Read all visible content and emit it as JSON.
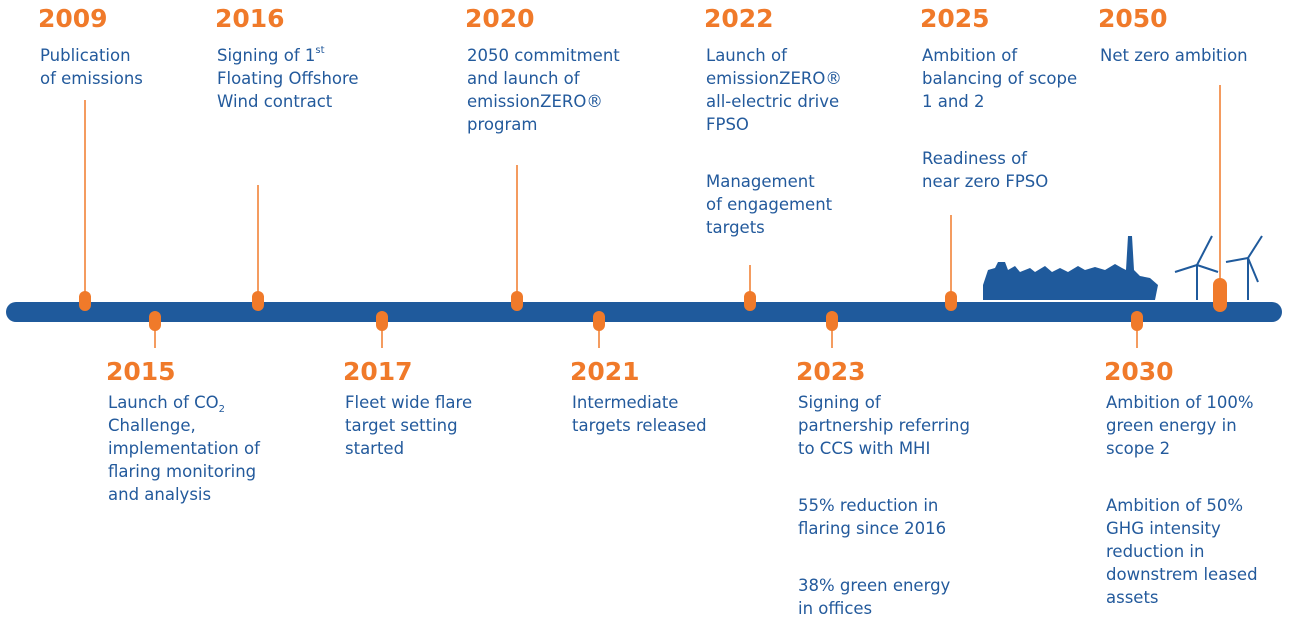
{
  "timeline": {
    "top": [
      {
        "year": "2009",
        "paragraphs": [
          [
            {
              "text": "Publication"
            },
            {
              "text": "of emissions"
            }
          ]
        ]
      },
      {
        "year": "2016",
        "paragraphs": [
          [
            {
              "text": "Signing of 1",
              "sup": "st"
            },
            {
              "text": "Floating Offshore"
            },
            {
              "text": "Wind contract"
            }
          ]
        ]
      },
      {
        "year": "2020",
        "paragraphs": [
          [
            {
              "text": "2050 commitment"
            },
            {
              "text": "and launch of"
            },
            {
              "text": "emissionZERO®"
            },
            {
              "text": "program"
            }
          ]
        ]
      },
      {
        "year": "2022",
        "paragraphs": [
          [
            {
              "text": "Launch of"
            },
            {
              "text": "emissionZERO®"
            },
            {
              "text": "all-electric drive"
            },
            {
              "text": "FPSO"
            }
          ],
          [
            {
              "text": "Management"
            },
            {
              "text": "of engagement"
            },
            {
              "text": "targets"
            }
          ]
        ]
      },
      {
        "year": "2025",
        "paragraphs": [
          [
            {
              "text": "Ambition of"
            },
            {
              "text": "balancing of scope"
            },
            {
              "text": "1 and 2"
            }
          ],
          [
            {
              "text": "Readiness of"
            },
            {
              "text": "near zero FPSO"
            }
          ]
        ]
      },
      {
        "year": "2050",
        "paragraphs": [
          [
            {
              "text": "Net zero ambition"
            }
          ]
        ]
      }
    ],
    "bottom": [
      {
        "year": "2015",
        "paragraphs": [
          [
            {
              "text": "Launch of CO",
              "sub": "2"
            },
            {
              "text": "Challenge,"
            },
            {
              "text": "implementation of"
            },
            {
              "text": "flaring monitoring"
            },
            {
              "text": "and analysis"
            }
          ]
        ]
      },
      {
        "year": "2017",
        "paragraphs": [
          [
            {
              "text": "Fleet wide flare"
            },
            {
              "text": "target setting"
            },
            {
              "text": "started"
            }
          ]
        ]
      },
      {
        "year": "2021",
        "paragraphs": [
          [
            {
              "text": "Intermediate"
            },
            {
              "text": "targets released"
            }
          ]
        ]
      },
      {
        "year": "2023",
        "paragraphs": [
          [
            {
              "text": "Signing of"
            },
            {
              "text": "partnership referring"
            },
            {
              "text": "to CCS with MHI"
            }
          ],
          [
            {
              "text": "55% reduction in"
            },
            {
              "text": "flaring since 2016"
            }
          ],
          [
            {
              "text": "38% green energy"
            },
            {
              "text": "in offices"
            }
          ]
        ]
      },
      {
        "year": "2030",
        "paragraphs": [
          [
            {
              "text": "Ambition of 100%"
            },
            {
              "text": "green energy in"
            },
            {
              "text": "scope 2"
            }
          ],
          [
            {
              "text": "Ambition of 50%"
            },
            {
              "text": "GHG intensity"
            },
            {
              "text": "reduction in"
            },
            {
              "text": "downstrem leased"
            },
            {
              "text": "assets"
            }
          ]
        ]
      }
    ]
  }
}
